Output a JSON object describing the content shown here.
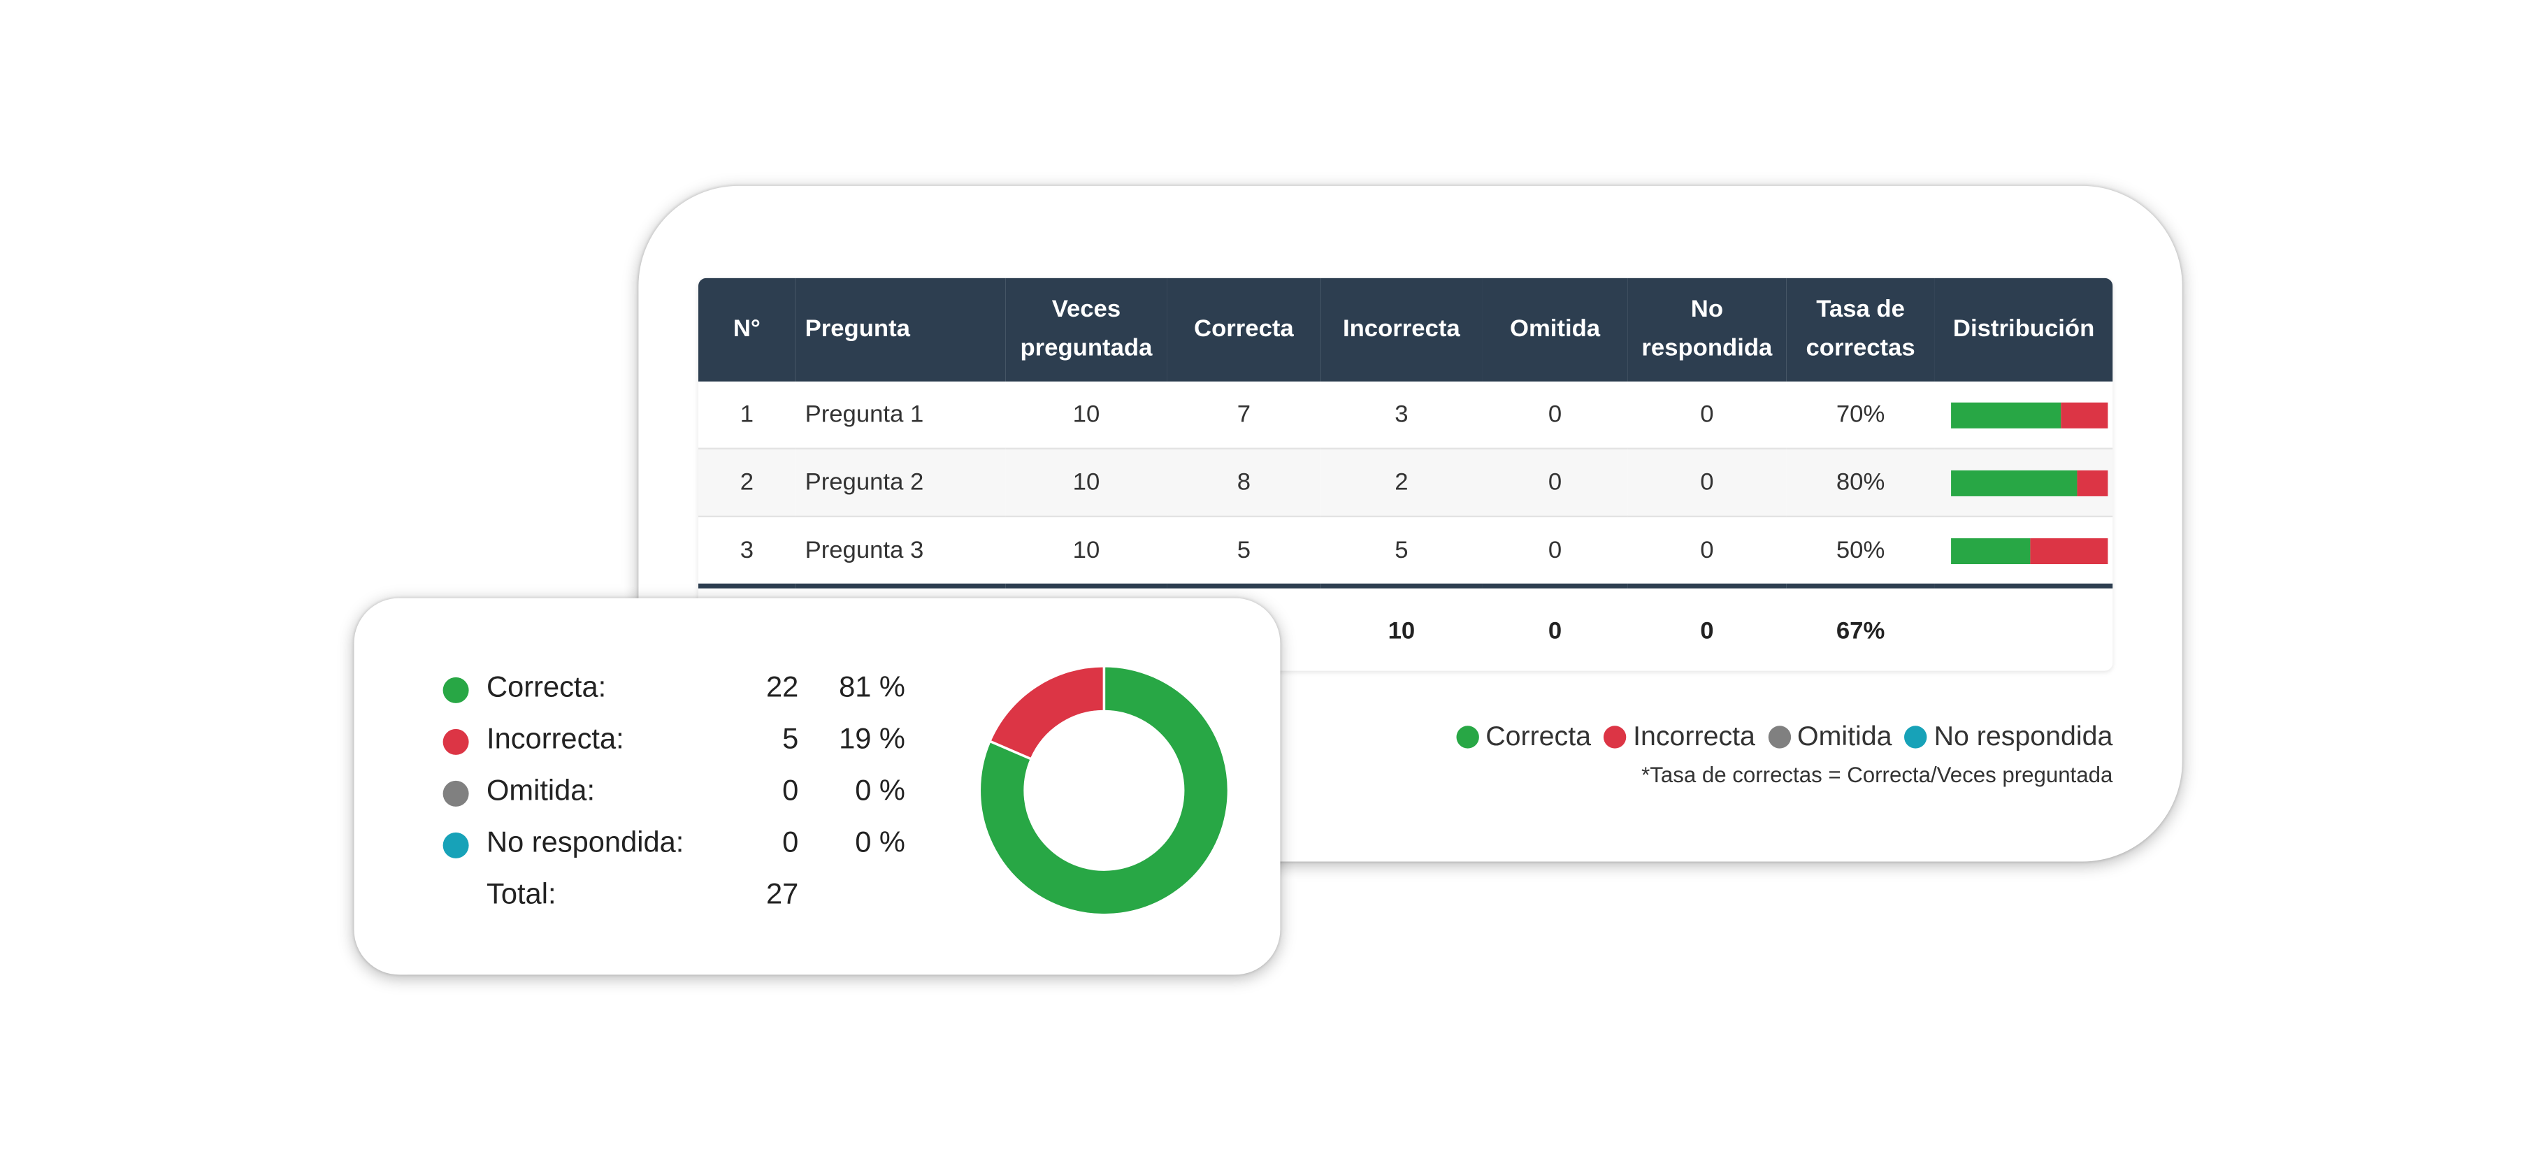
{
  "colors": {
    "correct": "#28a745",
    "incorrect": "#dc3545",
    "omitted": "#808080",
    "unanswered": "#17a2b8",
    "header_bg": "#2d3e50"
  },
  "table": {
    "headers": [
      "N°",
      "Pregunta",
      "Veces preguntada",
      "Correcta",
      "Incorrecta",
      "Omitida",
      "No respondida",
      "Tasa de correctas",
      "Distribución"
    ],
    "rows": [
      {
        "n": "1",
        "pregunta": "Pregunta 1",
        "veces": "10",
        "correcta": "7",
        "incorrecta": "3",
        "omitida": "0",
        "no_respondida": "0",
        "tasa": "70%",
        "dist_correct": 0.7,
        "dist_incorrect": 0.3
      },
      {
        "n": "2",
        "pregunta": "Pregunta 2",
        "veces": "10",
        "correcta": "8",
        "incorrecta": "2",
        "omitida": "0",
        "no_respondida": "0",
        "tasa": "80%",
        "dist_correct": 0.8,
        "dist_incorrect": 0.2
      },
      {
        "n": "3",
        "pregunta": "Pregunta 3",
        "veces": "10",
        "correcta": "5",
        "incorrecta": "5",
        "omitida": "0",
        "no_respondida": "0",
        "tasa": "50%",
        "dist_correct": 0.5,
        "dist_incorrect": 0.5
      }
    ],
    "totals": {
      "incorrecta": "10",
      "omitida": "0",
      "no_respondida": "0",
      "tasa": "67%"
    }
  },
  "legend": [
    {
      "label": "Correcta",
      "icon": "green-dot-icon"
    },
    {
      "label": "Incorrecta",
      "icon": "red-dot-icon"
    },
    {
      "label": "Omitida",
      "icon": "gray-dot-icon"
    },
    {
      "label": "No respondida",
      "icon": "teal-dot-icon"
    }
  ],
  "footnote": "*Tasa de correctas = Correcta/Veces preguntada",
  "summary": {
    "rows": [
      {
        "label": "Correcta:",
        "count": "22",
        "pct": "81 %"
      },
      {
        "label": "Incorrecta:",
        "count": "5",
        "pct": "19 %"
      },
      {
        "label": "Omitida:",
        "count": "0",
        "pct": "0 %"
      },
      {
        "label": "No respondida:",
        "count": "0",
        "pct": "0 %"
      }
    ],
    "total_label": "Total:",
    "total_count": "27"
  },
  "chart_data": {
    "type": "pie",
    "categories": [
      "Correcta",
      "Incorrecta",
      "Omitida",
      "No respondida"
    ],
    "values": [
      22,
      5,
      0,
      0
    ],
    "title": "",
    "donut": true
  }
}
